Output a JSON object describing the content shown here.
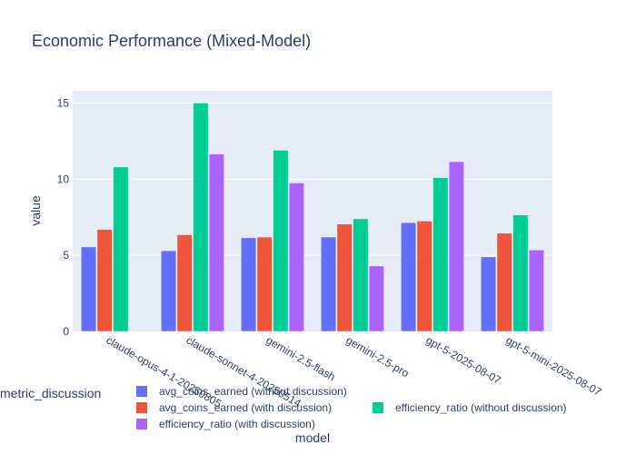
{
  "chart_data": {
    "type": "bar",
    "title": "Economic Performance (Mixed-Model)",
    "xlabel": "model",
    "ylabel": "value",
    "ylim": [
      0,
      15.8
    ],
    "yticks": [
      0,
      5,
      10,
      15
    ],
    "grid": true,
    "legend_title": "metric_discussion",
    "legend_position": "bottom",
    "categories": [
      "claude-opus-4-1-20250805",
      "claude-sonnet-4-20250514",
      "gemini-2.5-flash",
      "gemini-2.5-pro",
      "gpt-5-2025-08-07",
      "gpt-5-mini-2025-08-07"
    ],
    "series": [
      {
        "name": "avg_coins_earned (without discussion)",
        "color": "#636efa",
        "values": [
          5.55,
          5.3,
          6.15,
          6.2,
          7.15,
          4.9
        ]
      },
      {
        "name": "avg_coins_earned (with discussion)",
        "color": "#ef553b",
        "values": [
          6.7,
          6.35,
          6.2,
          7.05,
          7.25,
          6.45
        ]
      },
      {
        "name": "efficiency_ratio (without discussion)",
        "color": "#00cc96",
        "values": [
          10.8,
          15.0,
          11.9,
          7.4,
          10.1,
          7.65
        ]
      },
      {
        "name": "efficiency_ratio (with discussion)",
        "color": "#ab63fa",
        "values": [
          null,
          11.65,
          9.75,
          4.3,
          11.15,
          5.35
        ]
      }
    ]
  }
}
